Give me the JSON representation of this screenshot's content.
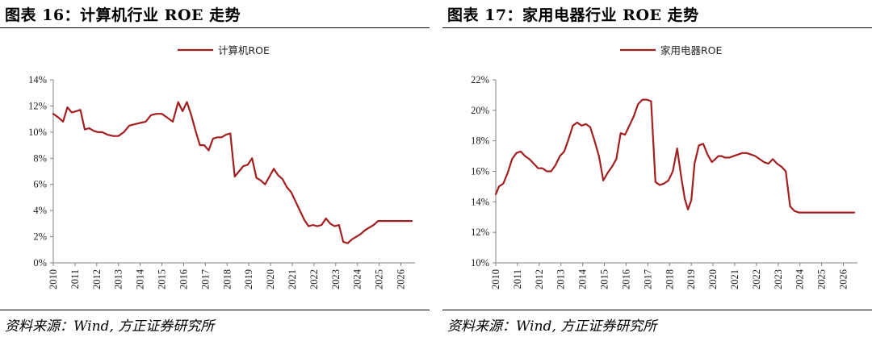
{
  "panels": [
    {
      "title": "图表 16：计算机行业 ROE 走势",
      "source": "资料来源：Wind, 方正证券研究所"
    },
    {
      "title": "图表 17：家用电器行业 ROE 走势",
      "source": "资料来源：Wind, 方正证券研究所"
    }
  ],
  "colors": {
    "line": "#A31F1F",
    "axis": "#808080"
  },
  "chart_data": [
    {
      "type": "line",
      "title": "",
      "xlabel": "",
      "ylabel": "",
      "legend": "top-center",
      "grid": false,
      "x_ticks": [
        "2010",
        "2011",
        "2012",
        "2013",
        "2014",
        "2015",
        "2016",
        "2017",
        "2018",
        "2019",
        "2020",
        "2021",
        "2022",
        "2023",
        "2024",
        "2025",
        "2026"
      ],
      "y_ticks": [
        "0%",
        "2%",
        "4%",
        "6%",
        "8%",
        "10%",
        "12%",
        "14%"
      ],
      "xlim": [
        2010.0,
        2026.65
      ],
      "ylim": [
        0,
        14
      ],
      "series": [
        {
          "name": "计算机ROE",
          "x": [
            2010.0,
            2010.25,
            2010.45,
            2010.65,
            2010.85,
            2011.05,
            2011.25,
            2011.45,
            2011.65,
            2011.85,
            2012.05,
            2012.25,
            2012.5,
            2012.75,
            2013.0,
            2013.25,
            2013.5,
            2013.75,
            2014.0,
            2014.25,
            2014.5,
            2014.75,
            2015.0,
            2015.25,
            2015.5,
            2015.75,
            2015.95,
            2016.15,
            2016.35,
            2016.55,
            2016.75,
            2016.95,
            2017.15,
            2017.35,
            2017.55,
            2017.75,
            2017.95,
            2018.15,
            2018.35,
            2018.55,
            2018.75,
            2018.95,
            2019.15,
            2019.35,
            2019.55,
            2019.75,
            2019.95,
            2020.15,
            2020.35,
            2020.55,
            2020.75,
            2020.95,
            2021.15,
            2021.35,
            2021.55,
            2021.75,
            2021.95,
            2022.15,
            2022.35,
            2022.55,
            2022.75,
            2022.95,
            2023.15,
            2023.35,
            2023.55,
            2023.75,
            2023.95,
            2024.15,
            2024.35,
            2024.55,
            2024.75,
            2024.95,
            2025.15,
            2025.35,
            2025.55,
            2025.75,
            2025.95,
            2026.15,
            2026.35,
            2026.5
          ],
          "values": [
            11.4,
            11.1,
            10.8,
            11.9,
            11.5,
            11.6,
            11.7,
            10.2,
            10.3,
            10.1,
            10.0,
            10.0,
            9.8,
            9.7,
            9.7,
            10.0,
            10.5,
            10.6,
            10.7,
            10.8,
            11.3,
            11.4,
            11.4,
            11.1,
            10.8,
            12.3,
            11.6,
            12.3,
            11.3,
            10.1,
            9.0,
            9.0,
            8.6,
            9.5,
            9.6,
            9.6,
            9.8,
            9.9,
            6.6,
            7.0,
            7.4,
            7.5,
            8.0,
            6.5,
            6.3,
            6.0,
            6.6,
            7.2,
            6.7,
            6.4,
            5.8,
            5.4,
            4.7,
            4.0,
            3.3,
            2.8,
            2.9,
            2.8,
            2.9,
            3.4,
            3.0,
            2.8,
            2.9,
            1.6,
            1.5,
            1.8,
            2.0,
            2.2,
            2.5,
            2.7,
            2.9,
            3.2,
            3.2,
            3.2,
            3.2,
            3.2,
            3.2,
            3.2,
            3.2,
            3.2
          ]
        }
      ]
    },
    {
      "type": "line",
      "title": "",
      "xlabel": "",
      "ylabel": "",
      "legend": "top-center",
      "grid": false,
      "x_ticks": [
        "2010",
        "2011",
        "2012",
        "2013",
        "2014",
        "2015",
        "2016",
        "2017",
        "2018",
        "2019",
        "2020",
        "2021",
        "2022",
        "2023",
        "2024",
        "2025",
        "2026"
      ],
      "y_ticks": [
        "10%",
        "12%",
        "14%",
        "16%",
        "18%",
        "20%",
        "22%"
      ],
      "xlim": [
        2010.0,
        2026.65
      ],
      "ylim": [
        10,
        22
      ],
      "series": [
        {
          "name": "家用电器ROE",
          "x": [
            2010.0,
            2010.15,
            2010.35,
            2010.55,
            2010.75,
            2010.95,
            2011.15,
            2011.35,
            2011.55,
            2011.75,
            2011.95,
            2012.15,
            2012.35,
            2012.55,
            2012.75,
            2012.95,
            2013.15,
            2013.35,
            2013.55,
            2013.75,
            2013.95,
            2014.15,
            2014.35,
            2014.55,
            2014.75,
            2014.95,
            2015.15,
            2015.35,
            2015.55,
            2015.75,
            2015.95,
            2016.15,
            2016.35,
            2016.55,
            2016.75,
            2016.95,
            2017.15,
            2017.35,
            2017.55,
            2017.75,
            2017.95,
            2018.15,
            2018.35,
            2018.55,
            2018.7,
            2018.85,
            2019.0,
            2019.15,
            2019.35,
            2019.55,
            2019.75,
            2019.95,
            2020.1,
            2020.25,
            2020.4,
            2020.55,
            2020.75,
            2020.95,
            2021.15,
            2021.35,
            2021.55,
            2021.75,
            2021.95,
            2022.15,
            2022.35,
            2022.55,
            2022.75,
            2022.95,
            2023.15,
            2023.35,
            2023.55,
            2023.75,
            2023.95,
            2024.15,
            2024.35,
            2024.55,
            2024.75,
            2024.95,
            2025.15,
            2025.35,
            2025.55,
            2025.75,
            2025.95,
            2026.15,
            2026.35,
            2026.5
          ],
          "values": [
            14.5,
            15.0,
            15.2,
            15.9,
            16.8,
            17.2,
            17.3,
            17.0,
            16.8,
            16.5,
            16.2,
            16.2,
            16.0,
            16.0,
            16.4,
            17.0,
            17.3,
            18.1,
            19.0,
            19.2,
            19.0,
            19.1,
            18.9,
            18.0,
            17.0,
            15.4,
            15.9,
            16.3,
            16.8,
            18.5,
            18.4,
            19.0,
            19.6,
            20.4,
            20.7,
            20.7,
            20.6,
            15.3,
            15.1,
            15.2,
            15.4,
            16.0,
            17.5,
            15.5,
            14.2,
            13.5,
            14.1,
            16.5,
            17.7,
            17.8,
            17.1,
            16.6,
            16.8,
            17.0,
            17.0,
            16.9,
            16.9,
            17.0,
            17.1,
            17.2,
            17.2,
            17.1,
            17.0,
            16.8,
            16.6,
            16.5,
            16.8,
            16.5,
            16.3,
            16.0,
            13.7,
            13.4,
            13.3,
            13.3,
            13.3,
            13.3,
            13.3,
            13.3,
            13.3,
            13.3,
            13.3,
            13.3,
            13.3,
            13.3,
            13.3,
            13.3
          ]
        }
      ]
    }
  ]
}
